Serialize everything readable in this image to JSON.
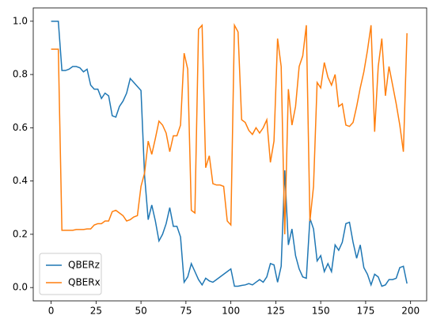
{
  "chart_data": {
    "type": "line",
    "x": [
      0,
      2,
      4,
      6,
      8,
      10,
      12,
      14,
      16,
      18,
      20,
      22,
      24,
      26,
      28,
      30,
      32,
      34,
      36,
      38,
      40,
      42,
      44,
      46,
      48,
      50,
      52,
      54,
      56,
      58,
      60,
      62,
      64,
      66,
      68,
      70,
      72,
      74,
      76,
      78,
      80,
      82,
      84,
      86,
      88,
      90,
      92,
      94,
      96,
      98,
      100,
      102,
      104,
      106,
      108,
      110,
      112,
      114,
      116,
      118,
      120,
      122,
      124,
      126,
      128,
      130,
      132,
      134,
      136,
      138,
      140,
      142,
      144,
      146,
      148,
      150,
      152,
      154,
      156,
      158,
      160,
      162,
      164,
      166,
      168,
      170,
      172,
      174,
      176,
      178,
      180,
      182,
      184,
      186,
      188,
      190,
      192,
      194,
      196,
      198
    ],
    "series": [
      {
        "name": "QBERz",
        "color": "#1f77b4",
        "values": [
          1.0,
          1.0,
          1.0,
          0.815,
          0.815,
          0.82,
          0.83,
          0.83,
          0.825,
          0.81,
          0.82,
          0.76,
          0.745,
          0.745,
          0.71,
          0.73,
          0.72,
          0.645,
          0.64,
          0.68,
          0.7,
          0.73,
          0.785,
          0.77,
          0.755,
          0.74,
          0.42,
          0.255,
          0.31,
          0.25,
          0.175,
          0.2,
          0.24,
          0.3,
          0.23,
          0.23,
          0.19,
          0.02,
          0.04,
          0.09,
          0.06,
          0.03,
          0.01,
          0.035,
          0.025,
          0.02,
          0.03,
          0.04,
          0.05,
          0.06,
          0.07,
          0.005,
          0.005,
          0.008,
          0.01,
          0.015,
          0.01,
          0.02,
          0.03,
          0.02,
          0.04,
          0.09,
          0.085,
          0.02,
          0.08,
          0.44,
          0.16,
          0.22,
          0.12,
          0.07,
          0.04,
          0.035,
          0.26,
          0.22,
          0.1,
          0.12,
          0.06,
          0.09,
          0.06,
          0.16,
          0.14,
          0.17,
          0.24,
          0.245,
          0.17,
          0.11,
          0.16,
          0.075,
          0.05,
          0.01,
          0.05,
          0.04,
          0.005,
          0.01,
          0.03,
          0.03,
          0.035,
          0.075,
          0.08,
          0.015
        ]
      },
      {
        "name": "QBERx",
        "color": "#ff7f0e",
        "values": [
          0.895,
          0.895,
          0.895,
          0.215,
          0.215,
          0.215,
          0.215,
          0.218,
          0.218,
          0.218,
          0.22,
          0.22,
          0.235,
          0.24,
          0.24,
          0.25,
          0.25,
          0.285,
          0.29,
          0.28,
          0.27,
          0.25,
          0.255,
          0.265,
          0.27,
          0.38,
          0.43,
          0.55,
          0.5,
          0.56,
          0.625,
          0.61,
          0.58,
          0.51,
          0.57,
          0.57,
          0.61,
          0.88,
          0.82,
          0.29,
          0.28,
          0.97,
          0.985,
          0.45,
          0.495,
          0.39,
          0.385,
          0.385,
          0.38,
          0.25,
          0.235,
          0.985,
          0.96,
          0.63,
          0.62,
          0.59,
          0.575,
          0.6,
          0.58,
          0.6,
          0.63,
          0.47,
          0.55,
          0.935,
          0.83,
          0.2,
          0.745,
          0.61,
          0.68,
          0.83,
          0.87,
          0.985,
          0.25,
          0.38,
          0.77,
          0.75,
          0.845,
          0.79,
          0.76,
          0.8,
          0.68,
          0.69,
          0.61,
          0.605,
          0.62,
          0.68,
          0.75,
          0.81,
          0.89,
          0.985,
          0.585,
          0.83,
          0.935,
          0.72,
          0.83,
          0.76,
          0.69,
          0.61,
          0.51,
          0.955
        ]
      }
    ],
    "xlim": [
      -9.95,
      208.95
    ],
    "ylim": [
      -0.05,
      1.05
    ],
    "xticks": [
      0,
      25,
      50,
      75,
      100,
      125,
      150,
      175,
      200
    ],
    "yticks": [
      {
        "value": 0,
        "label": "0.0"
      },
      0.2,
      0.4,
      0.6,
      0.8,
      {
        "value": 1,
        "label": "1.0"
      }
    ],
    "grid": false,
    "legend": "lower left"
  }
}
